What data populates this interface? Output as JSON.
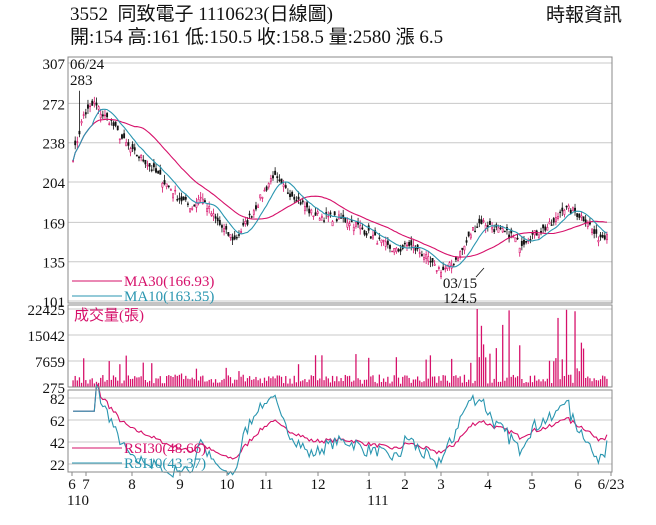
{
  "header": {
    "code": "3552",
    "name": "同致電子",
    "date_code": "1110623",
    "chart_kind": "(日線圖)",
    "source": "時報資訊",
    "stats": "開:154 高:161 低:150.5 收:158.5 量:2580 漲 6.5"
  },
  "colors": {
    "up": "#d6106a",
    "down": "#111111",
    "ma30": "#d6106a",
    "ma10": "#2a96b0",
    "rsi30": "#d6106a",
    "rsi10": "#2a96b0",
    "grid": "#c8c8c8"
  },
  "chart_data": [
    {
      "type": "candlestick",
      "panel": "price",
      "yticks": [
        307,
        272,
        238,
        204,
        169,
        135,
        101
      ],
      "ylim": [
        101,
        307
      ],
      "grid": true,
      "annotations": [
        {
          "label": "06/24",
          "value": "283"
        },
        {
          "label": "03/15",
          "value": "124.5"
        }
      ],
      "candles": [],
      "series": [
        {
          "name": "MA30",
          "label": "MA30(166.93)",
          "last": 166.93
        },
        {
          "name": "MA10",
          "label": "MA10(163.35)",
          "last": 163.35
        }
      ],
      "last_ohlc": {
        "open": 154,
        "high": 161,
        "low": 150.5,
        "close": 158.5
      }
    },
    {
      "type": "bar",
      "panel": "volume",
      "title": "成交量(張)",
      "yticks": [
        22425,
        15042,
        7659,
        275
      ],
      "ylim": [
        275,
        22425
      ],
      "values": [],
      "last": 2580
    },
    {
      "type": "line",
      "panel": "rsi",
      "yticks": [
        82,
        62,
        42,
        22
      ],
      "ylim": [
        22,
        82
      ],
      "series": [
        {
          "name": "RSI30",
          "label": "RSI30(48.66)",
          "last": 48.66,
          "values": []
        },
        {
          "name": "RSI10",
          "label": "RSI10(43.37)",
          "last": 43.37,
          "values": []
        }
      ]
    }
  ],
  "x_axis": {
    "month_labels": [
      "6",
      "7",
      "8",
      "9",
      "10",
      "11",
      "12",
      "1",
      "2",
      "3",
      "4",
      "5",
      "6",
      "6/23"
    ],
    "year_labels": [
      "110",
      "111"
    ]
  }
}
